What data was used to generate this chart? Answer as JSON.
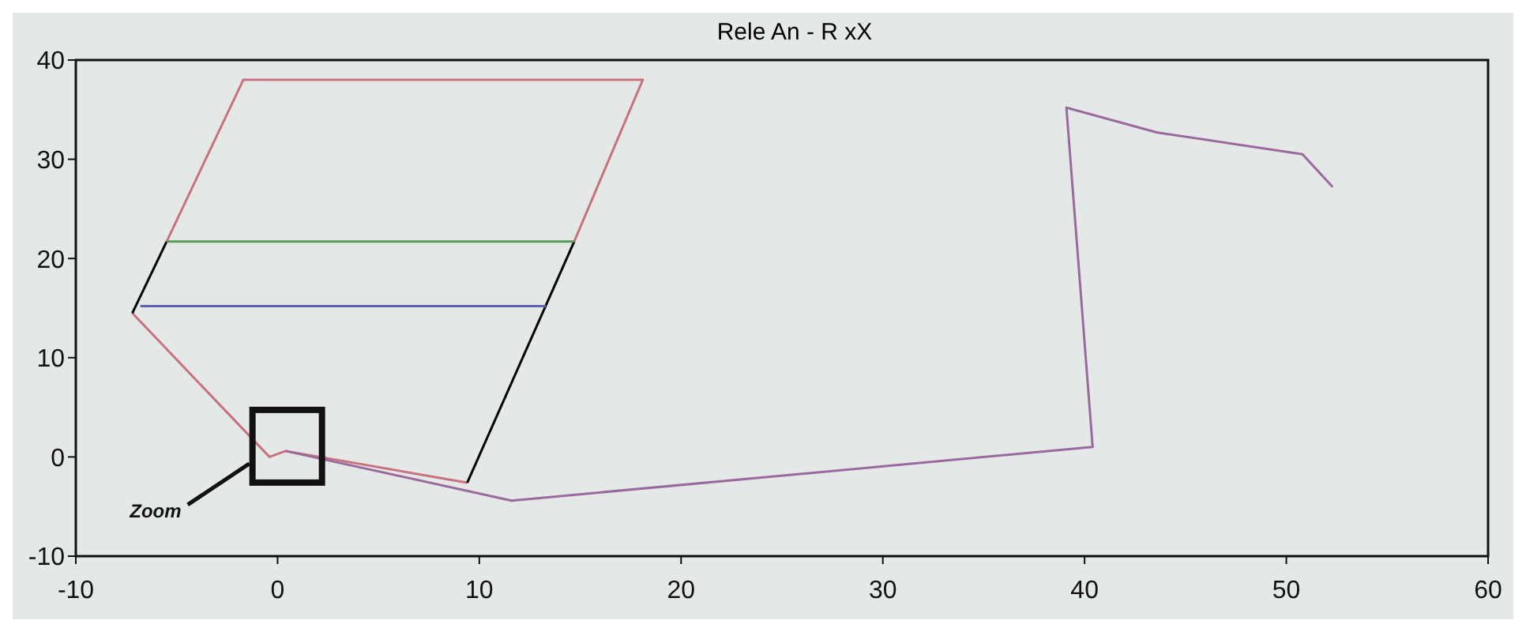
{
  "chart_data": {
    "type": "line",
    "title": "Rele An - R xX",
    "series": [
      {
        "color": "#c8727e",
        "x": [
          -5.5,
          -1.7,
          18.1,
          14.7,
          12,
          9.4,
          0.4,
          -0.4,
          -7.2
        ],
        "values": [
          21.7,
          38,
          38,
          21.7,
          null,
          -2.6,
          0.6,
          0,
          14.5
        ]
      },
      {
        "color": "#000000",
        "x": [
          -7.2,
          -5.5
        ],
        "values": [
          14.5,
          21.7
        ]
      },
      {
        "color": "#000000",
        "x": [
          9.4,
          14.7
        ],
        "values": [
          -2.6,
          21.7
        ]
      },
      {
        "color": "#5a9a5a",
        "x": [
          -5.5,
          14.7
        ],
        "values": [
          21.7,
          21.7
        ]
      },
      {
        "color": "#5a64b0",
        "x": [
          -6.8,
          13.3
        ],
        "values": [
          15.2,
          15.2
        ]
      },
      {
        "color": "#9a6a9e",
        "x": [
          0.4,
          11.6,
          40.4,
          39.1,
          43.6,
          50.8,
          52.3
        ],
        "values": [
          0.6,
          -4.4,
          1.0,
          35.2,
          32.7,
          30.5,
          27.2
        ]
      }
    ],
    "xlim": [
      -10,
      60
    ],
    "xticks": [
      -10,
      0,
      10,
      20,
      30,
      40,
      50,
      60
    ],
    "ylim": [
      -10,
      40
    ],
    "yticks": [
      -10,
      0,
      10,
      20,
      30,
      40
    ],
    "annotations": [
      "Zoom"
    ]
  }
}
